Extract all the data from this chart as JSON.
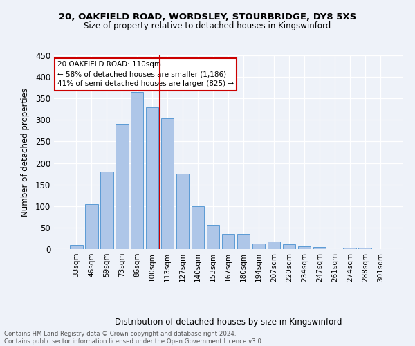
{
  "title1": "20, OAKFIELD ROAD, WORDSLEY, STOURBRIDGE, DY8 5XS",
  "title2": "Size of property relative to detached houses in Kingswinford",
  "xlabel": "Distribution of detached houses by size in Kingswinford",
  "ylabel": "Number of detached properties",
  "footer1": "Contains HM Land Registry data © Crown copyright and database right 2024.",
  "footer2": "Contains public sector information licensed under the Open Government Licence v3.0.",
  "categories": [
    "33sqm",
    "46sqm",
    "59sqm",
    "73sqm",
    "86sqm",
    "100sqm",
    "113sqm",
    "127sqm",
    "140sqm",
    "153sqm",
    "167sqm",
    "180sqm",
    "194sqm",
    "207sqm",
    "220sqm",
    "234sqm",
    "247sqm",
    "261sqm",
    "274sqm",
    "288sqm",
    "301sqm"
  ],
  "values": [
    10,
    104,
    180,
    291,
    365,
    330,
    303,
    175,
    100,
    56,
    35,
    36,
    13,
    18,
    12,
    6,
    5,
    0,
    4,
    3,
    0
  ],
  "bar_color": "#aec6e8",
  "bar_edge_color": "#5b9bd5",
  "vline_x": 5.5,
  "vline_color": "#cc0000",
  "annotation_line1": "20 OAKFIELD ROAD: 110sqm",
  "annotation_line2": "← 58% of detached houses are smaller (1,186)",
  "annotation_line3": "41% of semi-detached houses are larger (825) →",
  "box_color": "#cc0000",
  "ylim": [
    0,
    450
  ],
  "yticks": [
    0,
    50,
    100,
    150,
    200,
    250,
    300,
    350,
    400,
    450
  ],
  "bg_color": "#eef2f9",
  "grid_color": "#ffffff"
}
